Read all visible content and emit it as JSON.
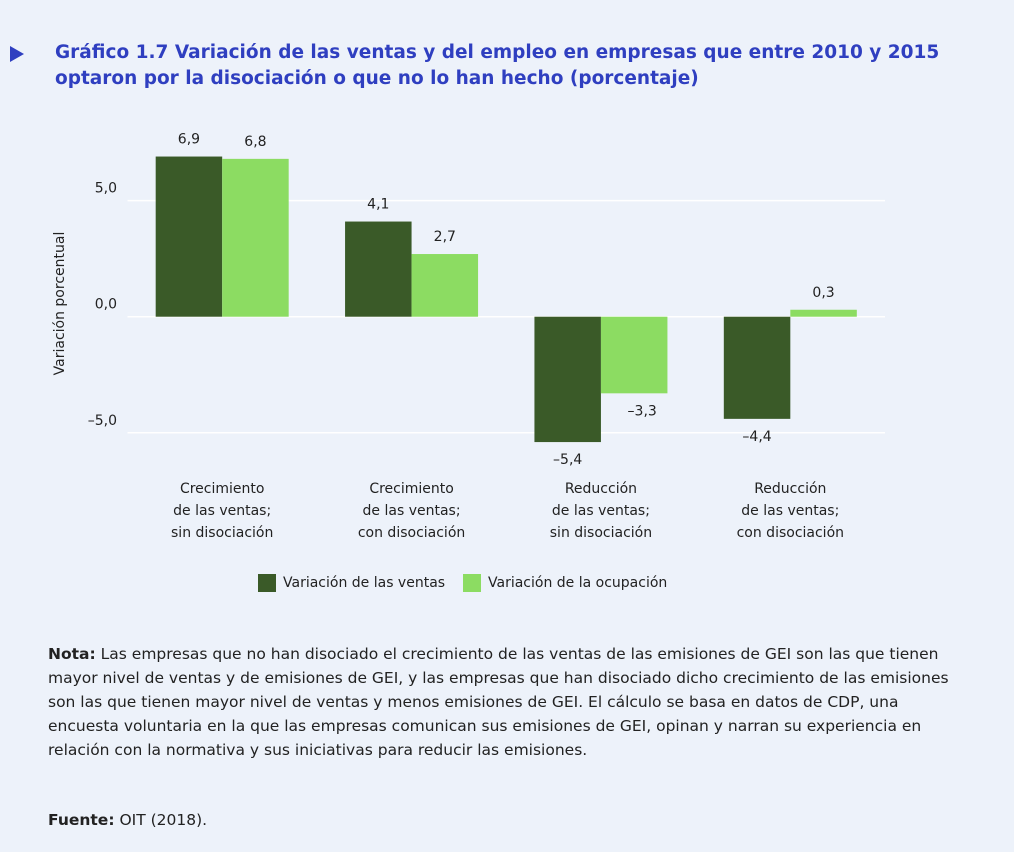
{
  "title": "Gráfico 1.7  Variación de las ventas y del empleo en empresas que entre 2010 y 2015 optaron por la disociación o que no lo han hecho (porcentaje)",
  "chart_data": {
    "type": "bar",
    "ylabel": "Variación porcentual",
    "categories": [
      [
        "Crecimiento",
        "de las ventas;",
        "sin disociación"
      ],
      [
        "Crecimiento",
        "de las ventas;",
        "con disociación"
      ],
      [
        "Reducción",
        "de las ventas;",
        "sin disociación"
      ],
      [
        "Reducción",
        "de las ventas;",
        "con disociación"
      ]
    ],
    "series": [
      {
        "name": "Variación de las ventas",
        "color": "#3a5a28",
        "values": [
          6.9,
          4.1,
          -5.4,
          -4.4
        ],
        "value_labels": [
          "6,9",
          "4,1",
          "–5,4",
          "–4,4"
        ]
      },
      {
        "name": "Variación de la ocupación",
        "color": "#8cdc62",
        "values": [
          6.8,
          2.7,
          -3.3,
          0.3
        ],
        "value_labels": [
          "6,8",
          "2,7",
          "–3,3",
          "0,3"
        ]
      }
    ],
    "ylim": [
      -6,
      8
    ],
    "yticks": [
      {
        "value": -5,
        "label": "–5,0"
      },
      {
        "value": 0,
        "label": "0,0"
      },
      {
        "value": 5,
        "label": "5,0"
      }
    ],
    "grid": true,
    "legend": "bottom"
  },
  "note": {
    "label": "Nota:",
    "text": "Las empresas que no han disociado el crecimiento de las ventas de las emisiones de GEI son las que tienen mayor nivel de ventas y de emisiones de GEI, y las empresas que han disociado dicho crecimiento de las emisiones son las que tienen mayor nivel de ventas y menos emisiones de GEI. El cálculo se basa en datos de CDP, una encuesta voluntaria en la que las empresas comunican sus emisiones de GEI, opinan y narran su experiencia en relación con la normativa y sus iniciativas para reducir las emisiones."
  },
  "source": {
    "label": "Fuente:",
    "text": "OIT (2018)."
  }
}
